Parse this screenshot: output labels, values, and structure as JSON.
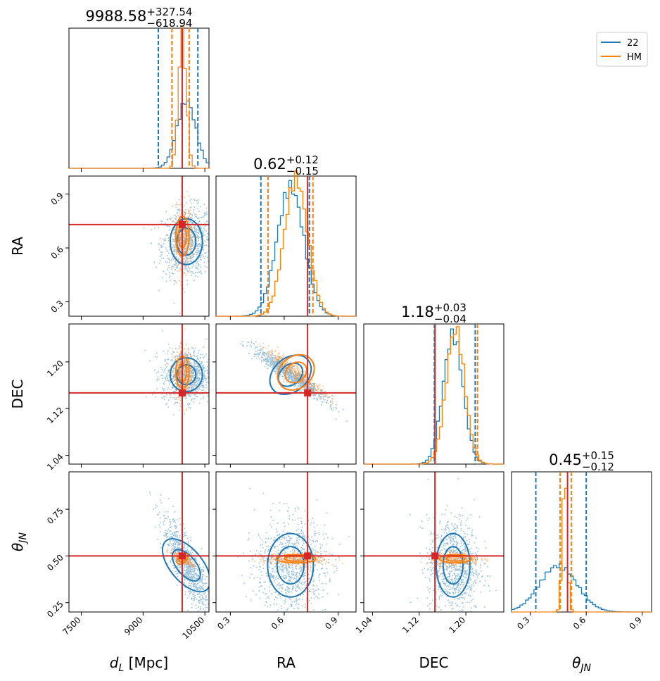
{
  "chart_data": {
    "type": "corner",
    "parameters": [
      {
        "name": "d_L",
        "label_main": "d",
        "label_sub": "L",
        "label_unit": " [Mpc]",
        "range": [
          7200,
          10600
        ],
        "ticks": [
          7500,
          9000,
          10500
        ],
        "tick_labels": [
          "7500",
          "9000",
          "10500"
        ],
        "truth": 9950,
        "title": {
          "median": "9988.58",
          "plus": "+327.54",
          "minus": "−618.94"
        },
        "quantiles": {
          "22": [
            9370,
            10330
          ],
          "HM": [
            9700,
            10120
          ]
        }
      },
      {
        "name": "RA",
        "label_main": "RA",
        "range": [
          0.22,
          1.0
        ],
        "ticks": [
          0.3,
          0.6,
          0.9
        ],
        "tick_labels": [
          "0.3",
          "0.6",
          "0.9"
        ],
        "truth": 0.73,
        "title": {
          "median": "0.62",
          "plus": "+0.12",
          "minus": "−0.15"
        },
        "quantiles": {
          "22": [
            0.47,
            0.74
          ],
          "HM": [
            0.51,
            0.76
          ]
        }
      },
      {
        "name": "DEC",
        "label_main": "DEC",
        "range": [
          1.025,
          1.265
        ],
        "ticks": [
          1.04,
          1.12,
          1.2
        ],
        "tick_labels": [
          "1.04",
          "1.12",
          "1.20"
        ],
        "truth": 1.147,
        "title": {
          "median": "1.18",
          "plus": "+0.03",
          "minus": "−0.04"
        },
        "quantiles": {
          "22": [
            1.146,
            1.216
          ],
          "HM": [
            1.147,
            1.22
          ]
        }
      },
      {
        "name": "theta_JN",
        "label_main": "θ",
        "label_sub": "JN",
        "range": [
          0.2,
          0.95
        ],
        "ticks": [
          0.25,
          0.5,
          0.75
        ],
        "tick_labels": [
          "0.25",
          "0.50",
          "0.75"
        ],
        "x_ticks": [
          0.3,
          0.6,
          0.9
        ],
        "x_tick_labels": [
          "0.3",
          "0.6",
          "0.9"
        ],
        "truth": 0.5,
        "title": {
          "median": "0.45",
          "plus": "+0.15",
          "minus": "−0.12"
        },
        "quantiles": {
          "22": [
            0.33,
            0.6
          ],
          "HM": [
            0.46,
            0.52
          ]
        }
      }
    ],
    "series": [
      {
        "name": "22",
        "color": "#1f77b4"
      },
      {
        "name": "HM",
        "color": "#ff7f0e"
      }
    ],
    "truth_color": "#d62728",
    "marginals": {
      "d_L": {
        "22": {
          "mean": 10050,
          "sd": 230,
          "peak": 0.48
        },
        "HM": {
          "mean": 9955,
          "sd": 95,
          "peak": 0.97
        }
      },
      "RA": {
        "22": {
          "mean": 0.635,
          "sd": 0.075,
          "peak": 0.92
        },
        "HM": {
          "mean": 0.665,
          "sd": 0.065,
          "peak": 0.98
        }
      },
      "DEC": {
        "22": {
          "mean": 1.178,
          "sd": 0.017,
          "peak": 0.92
        },
        "HM": {
          "mean": 1.182,
          "sd": 0.016,
          "peak": 0.96
        }
      },
      "theta_JN": {
        "22": {
          "mean": 0.45,
          "sd": 0.1,
          "peak": 0.33
        },
        "HM": {
          "mean": 0.485,
          "sd": 0.013,
          "peak": 0.99
        }
      }
    }
  },
  "legend": {
    "items": [
      "22",
      "HM"
    ],
    "position": "top-right"
  }
}
